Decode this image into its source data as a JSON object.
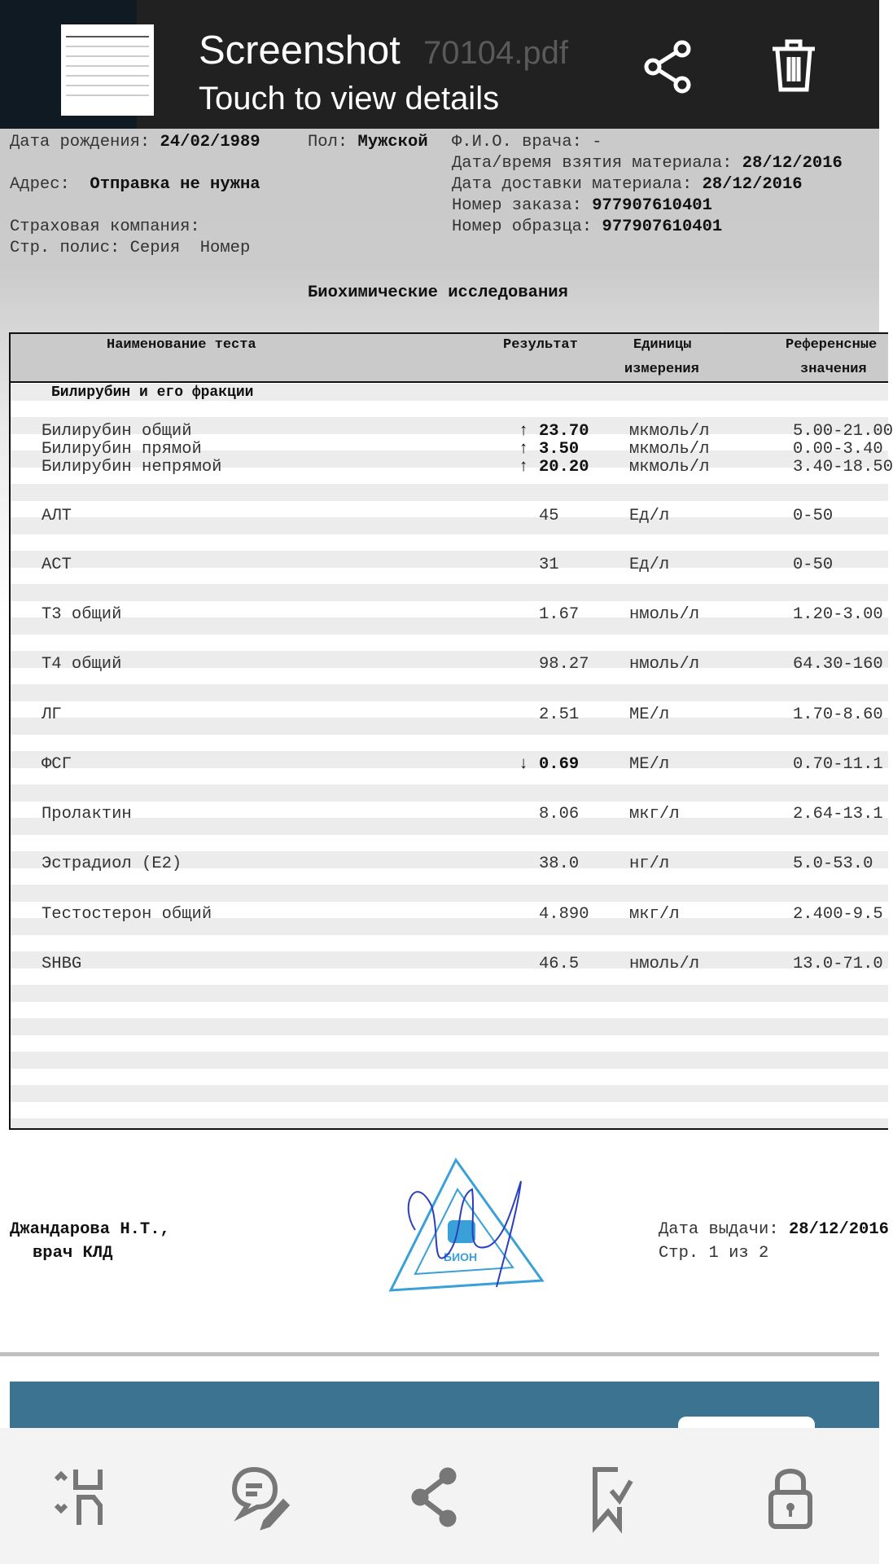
{
  "app_bar": {
    "title": "70104.pdf"
  },
  "notification": {
    "title": "Screenshot",
    "subtitle": "Touch to view details",
    "actions": [
      "share-icon",
      "trash-icon"
    ]
  },
  "patient": {
    "birth_label": "Дата рождения:",
    "birth": "24/02/1989",
    "sex_label": "Пол:",
    "sex": "Мужской",
    "doctor_label": "Ф.И.О. врача:",
    "doctor": "-",
    "address_label": "Адрес:",
    "address": "Отправка не нужна",
    "insurance_label": "Страховая компания:",
    "policy_label": "Стр. полис: Серия  Номер",
    "taken_label": "Дата/время взятия материала:",
    "taken": "28/12/2016",
    "delivered_label": "Дата доставки материала:",
    "delivered": "28/12/2016",
    "order_label": "Номер заказа:",
    "order": "977907610401",
    "sample_label": "Номер образца:",
    "sample": "977907610401"
  },
  "report_title": "Биохимические исследования",
  "table": {
    "headers": {
      "name": "Наименование теста",
      "result": "Результат",
      "units1": "Единицы",
      "units2": "измерения",
      "ref1": "Референсные",
      "ref2": "значения"
    },
    "section": "Билирубин и его фракции",
    "rows": [
      {
        "name": "Билирубин общий",
        "flag": "↑",
        "result": "23.70",
        "units": "мкмоль/л",
        "ref": "5.00-21.00"
      },
      {
        "name": "Билирубин прямой",
        "flag": "↑",
        "result": "3.50",
        "units": "мкмоль/л",
        "ref": "0.00-3.40"
      },
      {
        "name": "Билирубин непрямой",
        "flag": "↑",
        "result": "20.20",
        "units": "мкмоль/л",
        "ref": "3.40-18.50"
      },
      {
        "name": "АЛТ",
        "flag": "",
        "result": "45",
        "units": "Ед/л",
        "ref": "0-50"
      },
      {
        "name": "АСТ",
        "flag": "",
        "result": "31",
        "units": "Ед/л",
        "ref": "0-50"
      },
      {
        "name": "Т3 общий",
        "flag": "",
        "result": "1.67",
        "units": "нмоль/л",
        "ref": "1.20-3.00"
      },
      {
        "name": "Т4 общий",
        "flag": "",
        "result": "98.27",
        "units": "нмоль/л",
        "ref": "64.30-160"
      },
      {
        "name": "ЛГ",
        "flag": "",
        "result": "2.51",
        "units": "МЕ/л",
        "ref": "1.70-8.60"
      },
      {
        "name": "ФСГ",
        "flag": "↓",
        "result": "0.69",
        "units": "МЕ/л",
        "ref": "0.70-11.1"
      },
      {
        "name": "Пролактин",
        "flag": "",
        "result": "8.06",
        "units": "мкг/л",
        "ref": "2.64-13.1"
      },
      {
        "name": "Эстрадиол (E2)",
        "flag": "",
        "result": "38.0",
        "units": "нг/л",
        "ref": "5.0-53.0"
      },
      {
        "name": "Тестостерон общий",
        "flag": "",
        "result": "4.890",
        "units": "мкг/л",
        "ref": "2.400-9.5"
      },
      {
        "name": "SHBG",
        "flag": "",
        "result": "46.5",
        "units": "нмоль/л",
        "ref": "13.0-71.0"
      }
    ]
  },
  "footer": {
    "signer": "Джандарова Н.Т.,",
    "role": "врач КЛД",
    "issued_label": "Дата выдачи:",
    "issued": "28/12/2016",
    "page": "Стр. 1 из 2",
    "stamp_text": "БИОН"
  },
  "toolbar": {
    "items": [
      "reflow-icon",
      "comment-icon",
      "share-icon",
      "bookmark-icon",
      "lock-icon"
    ]
  },
  "colors": {
    "banner": "#3c7390",
    "stamp": "#3aa0d8",
    "signature": "#2a3fbf"
  }
}
